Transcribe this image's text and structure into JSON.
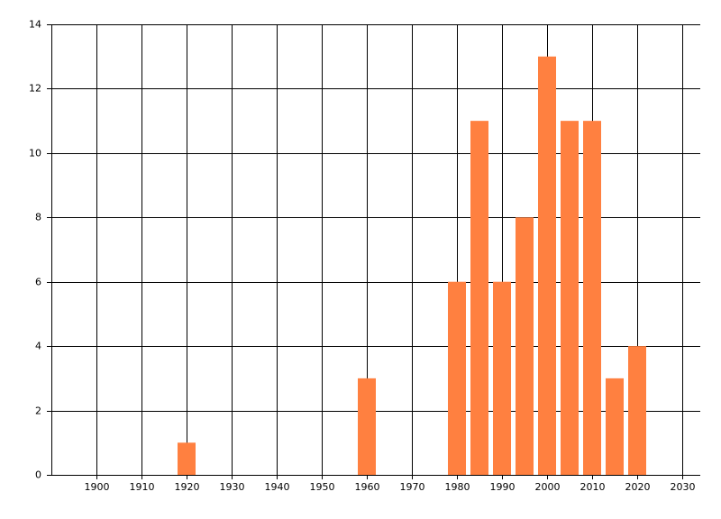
{
  "chart_data": {
    "type": "bar",
    "x": [
      1920,
      1960,
      1980,
      1985,
      1990,
      1995,
      2000,
      2005,
      2010,
      2015,
      2020
    ],
    "values": [
      1,
      3,
      6,
      11,
      6,
      8,
      13,
      11,
      11,
      3,
      4
    ],
    "color": "#ff8040",
    "xlim": [
      1890,
      2034
    ],
    "xticks": [
      1900,
      1910,
      1920,
      1930,
      1940,
      1950,
      1960,
      1970,
      1980,
      1990,
      2000,
      2010,
      2020,
      2030
    ],
    "ylim": [
      0,
      14
    ],
    "yticks": [
      0,
      2,
      4,
      6,
      8,
      10,
      12,
      14
    ],
    "grid": true
  }
}
